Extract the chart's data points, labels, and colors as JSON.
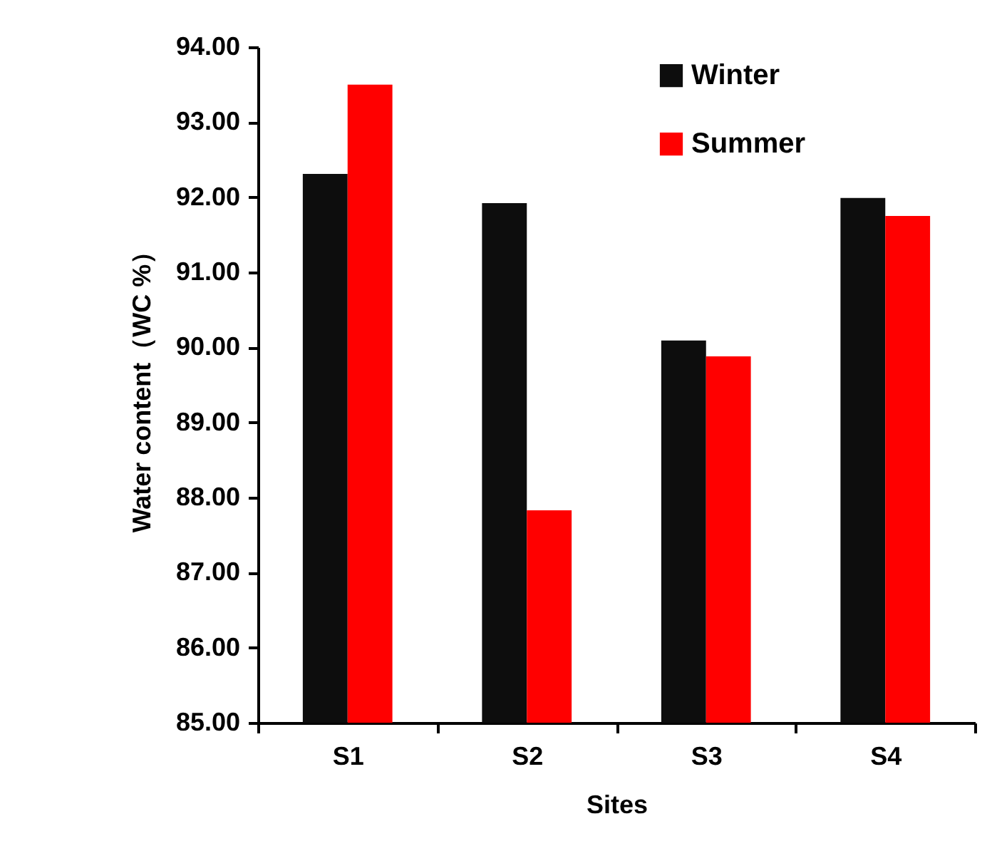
{
  "chart_data": {
    "type": "bar",
    "xlabel": "Sites",
    "ylabel": "Water content（WC %）",
    "categories": [
      "S1",
      "S2",
      "S3",
      "S4"
    ],
    "series": [
      {
        "name": "Winter",
        "color": "#0d0d0d",
        "values": [
          92.31,
          91.92,
          90.09,
          91.99
        ]
      },
      {
        "name": "Summer",
        "color": "#ff0000",
        "values": [
          93.5,
          87.83,
          89.88,
          91.75
        ]
      }
    ],
    "ylim": [
      85,
      94
    ],
    "yticks": [
      {
        "value": 85,
        "label": "85.00"
      },
      {
        "value": 86,
        "label": "86.00"
      },
      {
        "value": 87,
        "label": "87.00"
      },
      {
        "value": 88,
        "label": "88.00"
      },
      {
        "value": 89,
        "label": "89.00"
      },
      {
        "value": 90,
        "label": "90.00"
      },
      {
        "value": 91,
        "label": "91.00"
      },
      {
        "value": 92,
        "label": "92.00"
      },
      {
        "value": 93,
        "label": "93.00"
      },
      {
        "value": 94,
        "label": "94.00"
      }
    ],
    "grid": false,
    "legend": "top right"
  }
}
